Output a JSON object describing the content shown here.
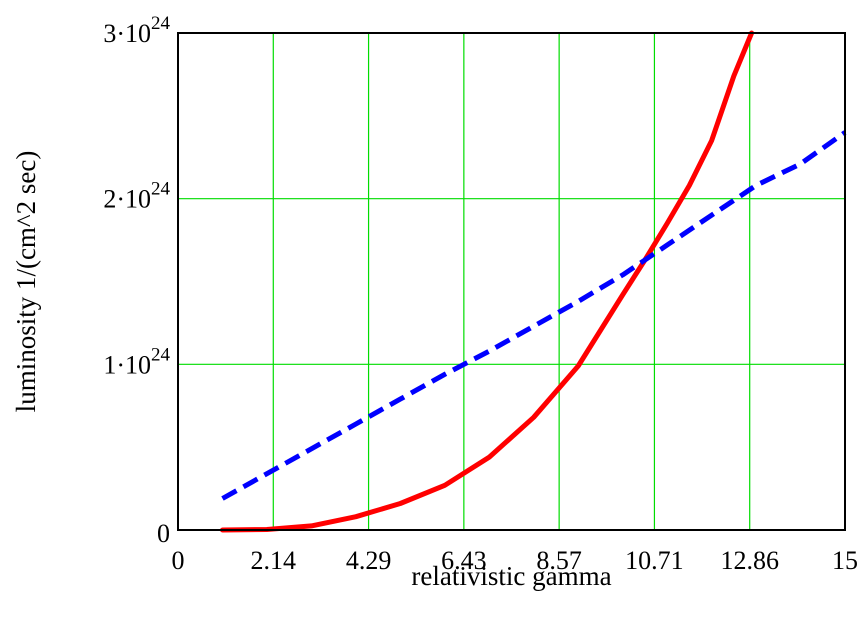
{
  "chart_data": {
    "type": "line",
    "xlabel": "relativistic gamma",
    "ylabel": "luminosity 1/(cm^2 sec)",
    "xlim": [
      0,
      15
    ],
    "ylim": [
      0,
      3e+24
    ],
    "grid": true,
    "grid_color": "#00dd00",
    "x_ticks": [
      {
        "value": 0,
        "label": "0"
      },
      {
        "value": 2.142857,
        "label": "2.14"
      },
      {
        "value": 4.285714,
        "label": "4.29"
      },
      {
        "value": 6.428571,
        "label": "6.43"
      },
      {
        "value": 8.571429,
        "label": "8.57"
      },
      {
        "value": 10.714286,
        "label": "10.71"
      },
      {
        "value": 12.857143,
        "label": "12.86"
      },
      {
        "value": 15,
        "label": "15"
      }
    ],
    "y_ticks": [
      {
        "value": 0,
        "label_base": "0",
        "label_exp": ""
      },
      {
        "value": 1e+24,
        "label_base": "1·10",
        "label_exp": "24"
      },
      {
        "value": 2e+24,
        "label_base": "2·10",
        "label_exp": "24"
      },
      {
        "value": 3e+24,
        "label_base": "3·10",
        "label_exp": "24"
      }
    ],
    "series": [
      {
        "color": "#ff0000",
        "style": "solid",
        "x": [
          1,
          2,
          3,
          4,
          5,
          6,
          7,
          8,
          9,
          10,
          10.5,
          11,
          11.5,
          12,
          12.5,
          12.9
        ],
        "y": [
          0,
          3e+21,
          2.5e+22,
          8e+22,
          1.6e+23,
          2.7e+23,
          4.4e+23,
          6.8e+23,
          9.9e+23,
          1.42e+24,
          1.63e+24,
          1.85e+24,
          2.08e+24,
          2.35e+24,
          2.74e+24,
          3e+24
        ]
      },
      {
        "color": "#0000ff",
        "style": "dashed",
        "x": [
          1,
          2,
          3,
          4,
          5,
          6,
          7,
          8,
          9,
          10,
          11,
          12,
          13,
          14,
          15
        ],
        "y": [
          1.9e+23,
          3.4e+23,
          4.9e+23,
          6.4e+23,
          7.9e+23,
          9.4e+23,
          1.08e+24,
          1.23e+24,
          1.38e+24,
          1.54e+24,
          1.72e+24,
          1.9e+24,
          2.08e+24,
          2.21e+24,
          2.4e+24
        ]
      }
    ]
  }
}
